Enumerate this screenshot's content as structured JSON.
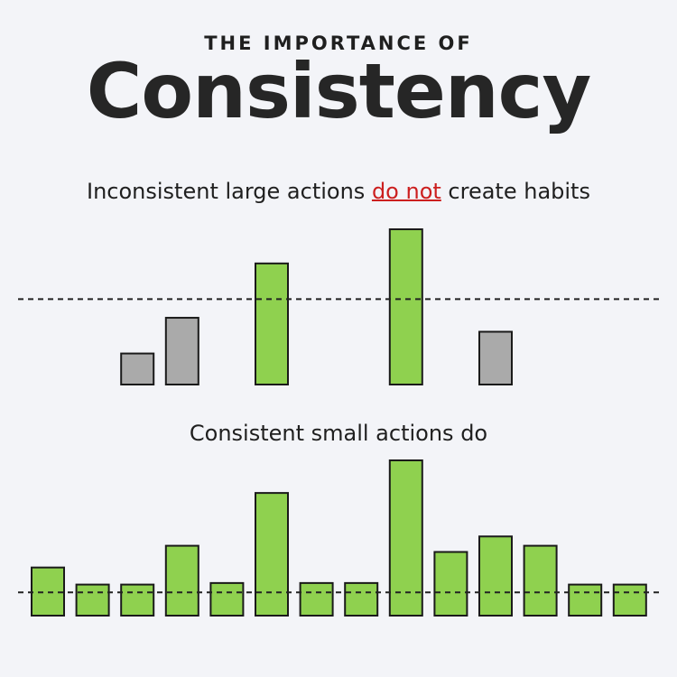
{
  "header": {
    "kicker": "THE IMPORTANCE OF",
    "title": "Consistency"
  },
  "section_top": {
    "heading_pre": "Inconsistent large actions ",
    "heading_emph": "do not",
    "heading_post": " create habits"
  },
  "section_bottom": {
    "heading": "Consistent small actions do"
  },
  "colors": {
    "above_threshold": "#8fd14f",
    "below_threshold": "#aaaaaa",
    "outline": "#1a1a1a",
    "emphasis": "#cc1f1f"
  },
  "chart_data": [
    {
      "type": "bar",
      "title": "",
      "threshold": 0.55,
      "bars": [
        {
          "value": 0.2,
          "above": false
        },
        {
          "value": 0.43,
          "above": false
        },
        {
          "value": 0.78,
          "above": true
        },
        {
          "value": 1.0,
          "above": true
        },
        {
          "value": 0.34,
          "above": false
        }
      ],
      "slots": [
        2,
        3,
        5,
        8,
        10
      ]
    },
    {
      "type": "bar",
      "title": "",
      "threshold": 0.15,
      "bars": [
        {
          "value": 0.31,
          "above": true
        },
        {
          "value": 0.2,
          "above": true
        },
        {
          "value": 0.2,
          "above": true
        },
        {
          "value": 0.45,
          "above": true
        },
        {
          "value": 0.21,
          "above": true
        },
        {
          "value": 0.79,
          "above": true
        },
        {
          "value": 0.21,
          "above": true
        },
        {
          "value": 0.21,
          "above": true
        },
        {
          "value": 1.0,
          "above": true
        },
        {
          "value": 0.41,
          "above": true
        },
        {
          "value": 0.51,
          "above": true
        },
        {
          "value": 0.45,
          "above": true
        },
        {
          "value": 0.2,
          "above": true
        },
        {
          "value": 0.2,
          "above": true
        }
      ],
      "slots": [
        0,
        1,
        2,
        3,
        4,
        5,
        6,
        7,
        8,
        9,
        10,
        11,
        12,
        13
      ]
    }
  ]
}
